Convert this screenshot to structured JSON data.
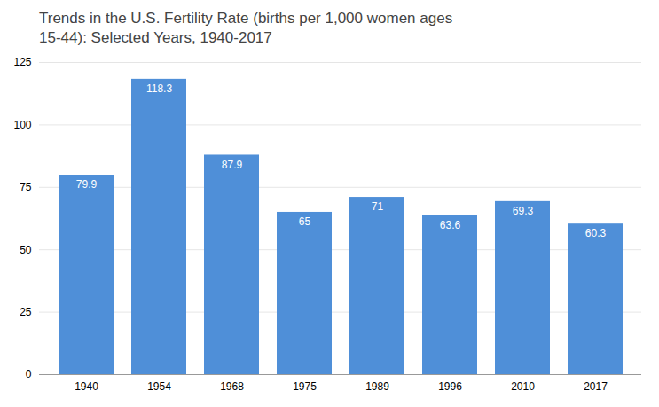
{
  "chart_data": {
    "type": "bar",
    "title": "Trends in the U.S. Fertility Rate (births per 1,000 women ages\n15-44): Selected Years, 1940-2017",
    "categories": [
      "1940",
      "1954",
      "1968",
      "1975",
      "1989",
      "1996",
      "2010",
      "2017"
    ],
    "values": [
      79.9,
      118.3,
      87.9,
      65,
      71,
      63.6,
      69.3,
      60.3
    ],
    "color": "#4F8FD8",
    "ylim": [
      0,
      125
    ],
    "yticks": [
      0,
      25,
      50,
      75,
      100,
      125
    ],
    "grid": true,
    "data_labels": true
  }
}
